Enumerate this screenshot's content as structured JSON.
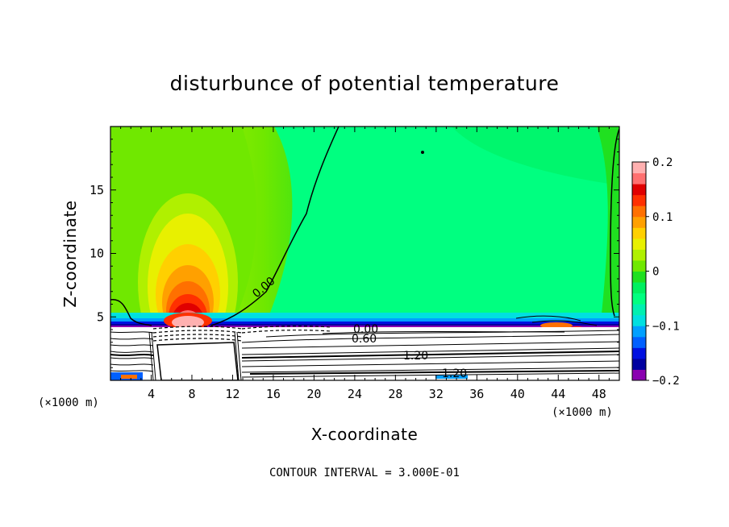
{
  "chart_data": {
    "type": "heatmap",
    "title": "disturbunce of potential temperature",
    "xlabel": "X-coordinate",
    "ylabel": "Z-coordinate",
    "x_unit": "(×1000 m)",
    "x_unit_right": "(×1000 m)",
    "xlim": [
      0,
      50
    ],
    "ylim": [
      0,
      20
    ],
    "x_ticks": [
      4,
      8,
      12,
      16,
      20,
      24,
      28,
      32,
      36,
      40,
      44,
      48
    ],
    "y_ticks": [
      5,
      10,
      15
    ],
    "colorbar": {
      "min": -0.2,
      "max": 0.2,
      "tick_values": [
        0.2,
        0.1,
        0,
        -0.1,
        -0.2
      ],
      "tick_labels": [
        "0.2",
        "0.1",
        "0",
        "−0.1",
        "−0.2"
      ],
      "colors": [
        "#8a00b0",
        "#0000a0",
        "#0010e0",
        "#0060ff",
        "#00a0ff",
        "#00e0e0",
        "#00f0b0",
        "#00ff80",
        "#00f060",
        "#20e020",
        "#70e800",
        "#b0f000",
        "#e8f000",
        "#ffd000",
        "#ffa000",
        "#ff7000",
        "#ff3000",
        "#e00000",
        "#ff7070",
        "#ffb0b0"
      ]
    },
    "contour_labels": [
      "0.00",
      "0.00",
      "0.60",
      "1.20",
      "1.20"
    ],
    "contour_interval_text": "CONTOUR INTERVAL = 3.000E-01",
    "grid": false
  }
}
